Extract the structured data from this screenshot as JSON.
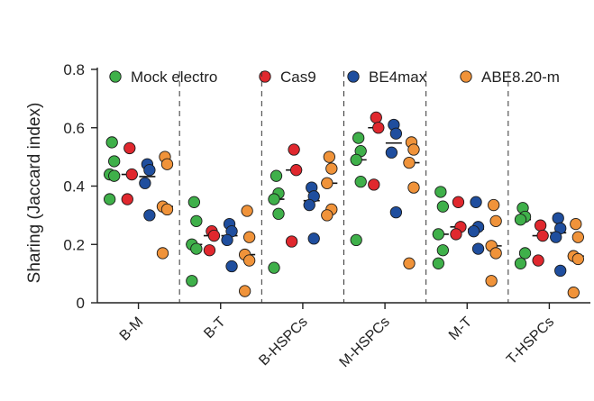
{
  "chart_data": {
    "type": "scatter",
    "ylabel": "Sharing (Jaccard index)",
    "ylim": [
      0,
      0.8
    ],
    "yticks": [
      0,
      0.2,
      0.4,
      0.6,
      0.8
    ],
    "ytick_labels": [
      "0",
      "0.2",
      "0.4",
      "0.6",
      "0.8"
    ],
    "categories": [
      "B-M",
      "B-T",
      "B-HSPCs",
      "M-HSPCs",
      "M-T",
      "T-HSPCs"
    ],
    "legend_position": "top",
    "grid": false,
    "series": [
      {
        "name": "Mock electro",
        "color": "#3fb04a",
        "values": [
          [
            0.55,
            0.485,
            0.44,
            0.435,
            0.355
          ],
          [
            0.345,
            0.28,
            0.2,
            0.185,
            0.075
          ],
          [
            0.435,
            0.375,
            0.355,
            0.305,
            0.12
          ],
          [
            0.565,
            0.52,
            0.49,
            0.415,
            0.215
          ],
          [
            0.38,
            0.33,
            0.235,
            0.18,
            0.135
          ],
          [
            0.325,
            0.295,
            0.285,
            0.17,
            0.135
          ]
        ]
      },
      {
        "name": "Cas9",
        "color": "#e0282e",
        "values": [
          [
            0.53,
            0.44,
            0.355
          ],
          [
            0.245,
            0.23,
            0.18
          ],
          [
            0.525,
            0.455,
            0.21
          ],
          [
            0.635,
            0.6,
            0.405
          ],
          [
            0.345,
            0.26,
            0.235
          ],
          [
            0.265,
            0.23,
            0.145
          ]
        ]
      },
      {
        "name": "BE4max",
        "color": "#1f4e9e",
        "values": [
          [
            0.475,
            0.455,
            0.41,
            0.3
          ],
          [
            0.27,
            0.245,
            0.215,
            0.125
          ],
          [
            0.395,
            0.365,
            0.335,
            0.22
          ],
          [
            0.61,
            0.58,
            0.515,
            0.31
          ],
          [
            0.345,
            0.26,
            0.245,
            0.185
          ],
          [
            0.29,
            0.255,
            0.225,
            0.11
          ]
        ]
      },
      {
        "name": "ABE8.20-m",
        "color": "#f0933a",
        "values": [
          [
            0.5,
            0.475,
            0.33,
            0.32,
            0.17
          ],
          [
            0.315,
            0.225,
            0.165,
            0.145,
            0.04
          ],
          [
            0.5,
            0.46,
            0.41,
            0.32,
            0.3
          ],
          [
            0.55,
            0.525,
            0.48,
            0.395,
            0.135
          ],
          [
            0.335,
            0.28,
            0.195,
            0.17,
            0.075
          ],
          [
            0.27,
            0.225,
            0.16,
            0.15,
            0.035
          ]
        ]
      }
    ],
    "median_marks": true
  }
}
